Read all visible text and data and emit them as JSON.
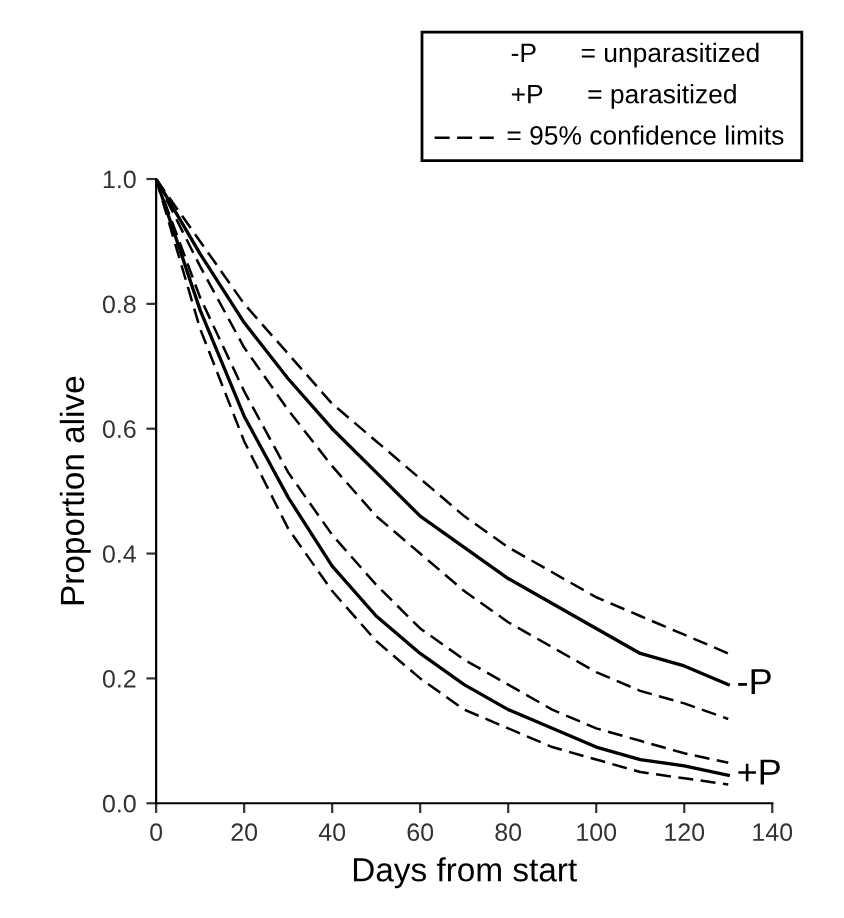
{
  "chart_data": {
    "type": "line",
    "xlabel": "Days from start",
    "ylabel": "Proportion alive",
    "x": [
      0,
      10,
      20,
      30,
      40,
      50,
      60,
      70,
      80,
      90,
      100,
      110,
      120,
      130
    ],
    "series": [
      {
        "color": "#000000",
        "line_style": "solid",
        "values": [
          1,
          0.88,
          0.77,
          0.68,
          0.6,
          0.53,
          0.46,
          0.41,
          0.36,
          0.32,
          0.28,
          0.24,
          0.22,
          0.19
        ]
      },
      {
        "color": "#000000",
        "line_style": "dashed",
        "values": [
          1,
          0.9,
          0.8,
          0.72,
          0.64,
          0.58,
          0.52,
          0.46,
          0.41,
          0.37,
          0.33,
          0.3,
          0.27,
          0.24
        ]
      },
      {
        "color": "#000000",
        "line_style": "dashed",
        "values": [
          1,
          0.86,
          0.73,
          0.63,
          0.54,
          0.46,
          0.4,
          0.34,
          0.29,
          0.25,
          0.21,
          0.18,
          0.16,
          0.135
        ]
      },
      {
        "color": "#000000",
        "line_style": "solid",
        "values": [
          1,
          0.79,
          0.62,
          0.49,
          0.38,
          0.3,
          0.24,
          0.19,
          0.15,
          0.12,
          0.09,
          0.07,
          0.06,
          0.045
        ]
      },
      {
        "color": "#000000",
        "line_style": "dashed",
        "values": [
          1,
          0.81,
          0.66,
          0.53,
          0.43,
          0.35,
          0.28,
          0.23,
          0.19,
          0.15,
          0.12,
          0.1,
          0.08,
          0.065
        ]
      },
      {
        "color": "#000000",
        "line_style": "dashed",
        "values": [
          1,
          0.76,
          0.58,
          0.44,
          0.34,
          0.26,
          0.2,
          0.15,
          0.12,
          0.09,
          0.07,
          0.05,
          0.04,
          0.03
        ]
      }
    ],
    "annotations": [
      {
        "text": "-P",
        "x": 130,
        "y": 0.19
      },
      {
        "text": "+P",
        "x": 130,
        "y": 0.045
      },
      "-P      = unparasitized",
      "+P      = parasitized",
      "= 95% confidence limits"
    ],
    "xlim": [
      0,
      140
    ],
    "xticks": [
      0,
      20,
      40,
      60,
      80,
      100,
      120,
      140
    ],
    "ylim": [
      0,
      1.0
    ],
    "yticks": [
      {
        "value": 0,
        "label": "0.0"
      },
      0.2,
      0.4,
      0.6,
      0.8,
      {
        "value": 1.0,
        "label": "1.0"
      }
    ],
    "grid": false,
    "marker": "none"
  }
}
